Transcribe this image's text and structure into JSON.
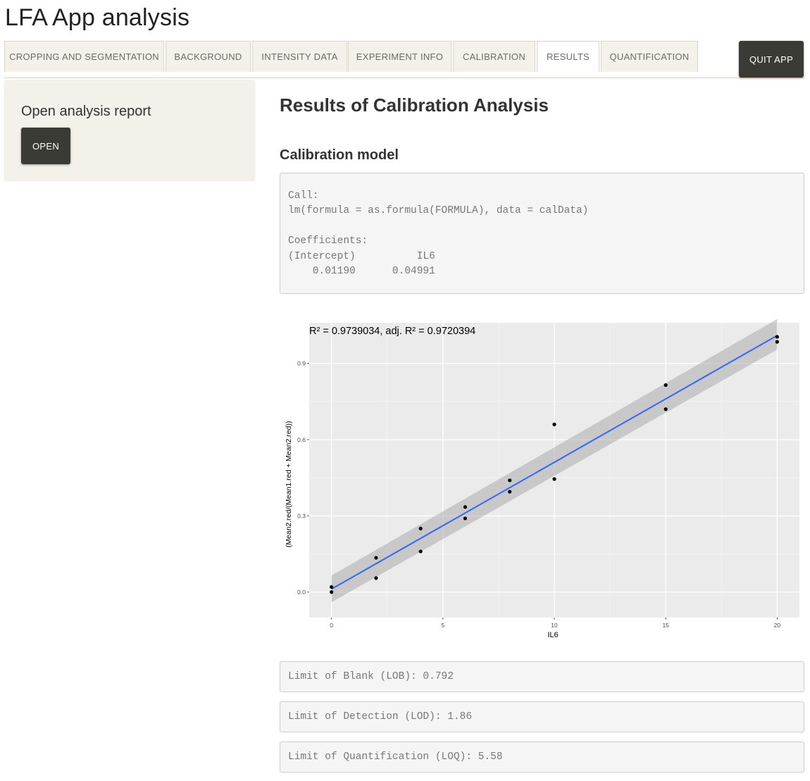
{
  "app": {
    "title": "LFA App analysis"
  },
  "tabs": [
    {
      "label": "CROPPING AND SEGMENTATION"
    },
    {
      "label": "BACKGROUND"
    },
    {
      "label": "INTENSITY DATA"
    },
    {
      "label": "EXPERIMENT INFO"
    },
    {
      "label": "CALIBRATION"
    },
    {
      "label": "RESULTS",
      "active": true
    },
    {
      "label": "QUANTIFICATION"
    }
  ],
  "quit_label": "QUIT APP",
  "sidebar": {
    "title": "Open analysis report",
    "open_label": "OPEN"
  },
  "main": {
    "heading": "Results of Calibration Analysis",
    "model_heading": "Calibration model",
    "model_output": "Call:\nlm(formula = as.formula(FORMULA), data = calData)\n\nCoefficients:\n(Intercept)          IL6  \n    0.01190      0.04991  "
  },
  "results": {
    "lob": "Limit of Blank (LOB): 0.792",
    "lod": "Limit of Detection (LOD): 1.86",
    "loq": "Limit of Quantification (LOQ): 5.58"
  },
  "colors": {
    "fit_line": "#3366ff",
    "panel_bg": "#ebebeb",
    "ribbon": "#c8c8c8",
    "button_dark": "#3b3b35"
  },
  "chart_data": {
    "type": "scatter",
    "r2_label": "R² = 0.9739034, adj. R² = 0.9720394",
    "xlabel": "IL6",
    "ylabel": "(Mean2.red/(Mean1.red + Mean2.red))",
    "xlim": [
      -1,
      21
    ],
    "ylim": [
      -0.1,
      1.06
    ],
    "x_ticks": [
      0,
      5,
      10,
      15,
      20
    ],
    "y_ticks": [
      0.0,
      0.3,
      0.6,
      0.9
    ],
    "y_tick_labels": [
      "0.0",
      "0.3",
      "0.6",
      "0.9"
    ],
    "grid": true,
    "points": [
      {
        "x": 0,
        "y": 0.02
      },
      {
        "x": 0,
        "y": 0.0
      },
      {
        "x": 2,
        "y": 0.135
      },
      {
        "x": 2,
        "y": 0.055
      },
      {
        "x": 4,
        "y": 0.25
      },
      {
        "x": 4,
        "y": 0.16
      },
      {
        "x": 6,
        "y": 0.335
      },
      {
        "x": 6,
        "y": 0.29
      },
      {
        "x": 8,
        "y": 0.44
      },
      {
        "x": 8,
        "y": 0.395
      },
      {
        "x": 10,
        "y": 0.66
      },
      {
        "x": 10,
        "y": 0.445
      },
      {
        "x": 15,
        "y": 0.815
      },
      {
        "x": 15,
        "y": 0.72
      },
      {
        "x": 20,
        "y": 1.005
      },
      {
        "x": 20,
        "y": 0.985
      }
    ],
    "fit": {
      "intercept": 0.0119,
      "slope": 0.04991
    },
    "confidence_band": {
      "x": [
        0,
        20
      ],
      "lower": [
        -0.04,
        0.955
      ],
      "upper": [
        0.065,
        1.075
      ]
    }
  }
}
